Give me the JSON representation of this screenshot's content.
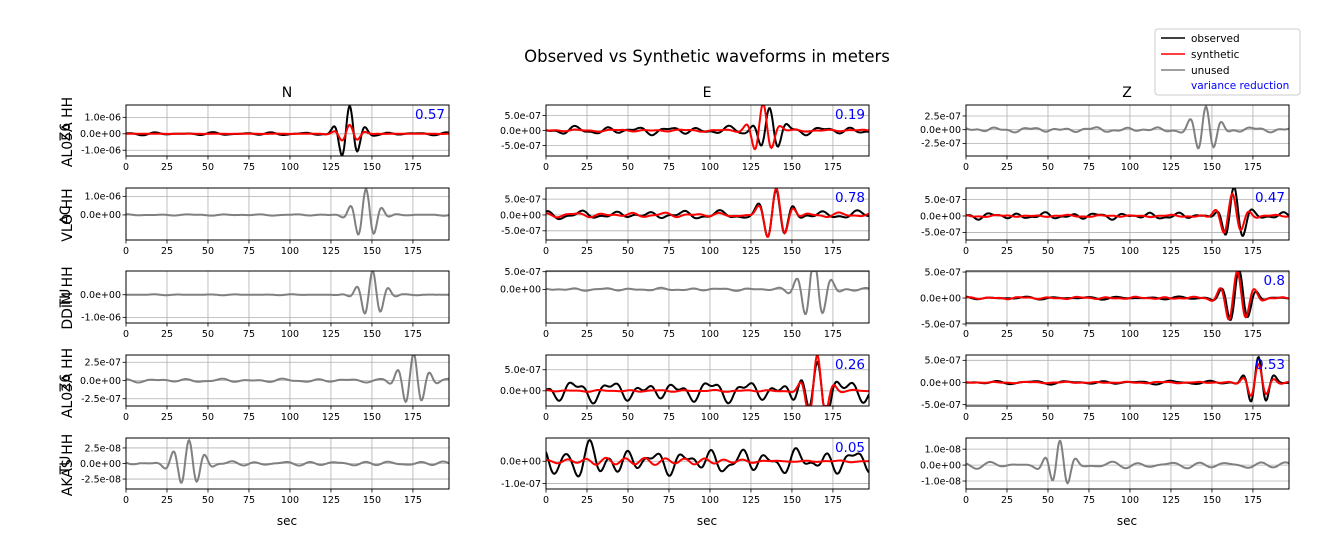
{
  "figure": {
    "title": "Observed vs Synthetic waveforms in meters",
    "columns": [
      "N",
      "E",
      "Z"
    ],
    "rows": [
      {
        "network": "Z6",
        "station": "AL05A HH"
      },
      {
        "network": "AC",
        "station": "VLO HH"
      },
      {
        "network": "TU",
        "station": "DDIM HH"
      },
      {
        "network": "Z6",
        "station": "AL03A HH"
      },
      {
        "network": "TU",
        "station": "AKAS HH"
      }
    ],
    "xlabel": "sec"
  },
  "legend": {
    "position": "top-right",
    "items": [
      {
        "label": "observed",
        "color": "#000000",
        "kind": "line"
      },
      {
        "label": "synthetic",
        "color": "#ff0000",
        "kind": "line"
      },
      {
        "label": "unused",
        "color": "#808080",
        "kind": "line"
      },
      {
        "label": "variance reduction",
        "color": "#0000ff",
        "kind": "text"
      }
    ]
  },
  "colors": {
    "observed": "#000000",
    "synthetic": "#ff0000",
    "unused": "#808080",
    "variance_reduction": "#0000ff",
    "grid": "#b0b0b0"
  },
  "chart_data": {
    "type": "line",
    "x_range": [
      0,
      197
    ],
    "x_ticks": [
      0,
      25,
      50,
      75,
      100,
      125,
      150,
      175
    ],
    "grid": true,
    "panels": [
      {
        "row": 0,
        "col": 0,
        "used": true,
        "vr": "0.57",
        "ylim": [
          -1.35e-06,
          1.75e-06
        ],
        "yticks": [
          1e-06,
          0,
          -1e-06
        ],
        "ytick_labels": [
          "1.0e-06",
          "0.0e+00",
          "-1.0e-06"
        ],
        "obs": {
          "amp": 1.7e-06,
          "center": 136,
          "width": 8,
          "period": 10,
          "noise": 0.06
        },
        "syn": {
          "amp": 5.5e-07,
          "center": 136,
          "width": 8,
          "period": 10,
          "noise": 0.02
        }
      },
      {
        "row": 0,
        "col": 1,
        "used": true,
        "vr": "0.19",
        "ylim": [
          -8.5e-07,
          8.5e-07
        ],
        "yticks": [
          5e-07,
          0,
          -5e-07
        ],
        "ytick_labels": [
          "5.0e-07",
          "0.0e+00",
          "-5.0e-07"
        ],
        "obs": {
          "amp": 8e-07,
          "center": 136,
          "width": 9,
          "period": 11,
          "noise": 0.2
        },
        "syn": {
          "amp": 9e-07,
          "center": 132,
          "width": 8,
          "period": 11,
          "noise": 0.05
        }
      },
      {
        "row": 0,
        "col": 2,
        "used": false,
        "vr": "",
        "ylim": [
          -4.8e-07,
          4.5e-07
        ],
        "yticks": [
          2.5e-07,
          0,
          -2.5e-07
        ],
        "ytick_labels": [
          "2.5e-07",
          "0.0e+00",
          "-2.5e-07"
        ],
        "obs": {
          "amp": 4.4e-07,
          "center": 146,
          "width": 9,
          "period": 10,
          "noise": 0.12
        }
      },
      {
        "row": 1,
        "col": 0,
        "used": false,
        "vr": "",
        "ylim": [
          -1.35e-06,
          1.45e-06
        ],
        "yticks": [
          1e-06,
          0
        ],
        "ytick_labels": [
          "1.0e-06",
          "0.0e+00"
        ],
        "obs": {
          "amp": 1.4e-06,
          "center": 146,
          "width": 9,
          "period": 10,
          "noise": 0.03
        }
      },
      {
        "row": 1,
        "col": 1,
        "used": true,
        "vr": "0.78",
        "ylim": [
          -7.9e-07,
          8.5e-07
        ],
        "yticks": [
          5e-07,
          0,
          -5e-07
        ],
        "ytick_labels": [
          "5.0e-07",
          "0.0e+00",
          "-5.0e-07"
        ],
        "obs": {
          "amp": 8.5e-07,
          "center": 140,
          "width": 10,
          "period": 11,
          "noise": 0.18
        },
        "syn": {
          "amp": 8.5e-07,
          "center": 140,
          "width": 10,
          "period": 11,
          "noise": 0.1
        }
      },
      {
        "row": 1,
        "col": 2,
        "used": true,
        "vr": "0.47",
        "ylim": [
          -7.3e-07,
          8.5e-07
        ],
        "yticks": [
          5e-07,
          0,
          -5e-07
        ],
        "ytick_labels": [
          "5.0e-07",
          "0.0e+00",
          "-5.0e-07"
        ],
        "obs": {
          "amp": 8.5e-07,
          "center": 163,
          "width": 9,
          "period": 11,
          "noise": 0.14
        },
        "syn": {
          "amp": 6.5e-07,
          "center": 162,
          "width": 9,
          "period": 11,
          "noise": 0.06
        }
      },
      {
        "row": 2,
        "col": 0,
        "used": false,
        "vr": "",
        "ylim": [
          -1.25e-06,
          1.05e-06
        ],
        "yticks": [
          0,
          -1e-06
        ],
        "ytick_labels": [
          "0.0e+00",
          "-1.0e-06"
        ],
        "obs": {
          "amp": 1.05e-06,
          "center": 150,
          "width": 9,
          "period": 10,
          "noise": 0.02
        }
      },
      {
        "row": 2,
        "col": 1,
        "used": false,
        "vr": "",
        "ylim": [
          -9.5e-07,
          5.2e-07
        ],
        "yticks": [
          5e-07,
          0
        ],
        "ytick_labels": [
          "5.0e-07",
          "0.0e+00"
        ],
        "obs": {
          "amp": 9e-07,
          "center": 163,
          "width": 10,
          "period": 11,
          "noise": 0.05
        }
      },
      {
        "row": 2,
        "col": 2,
        "used": true,
        "vr": "0.8",
        "ylim": [
          -4.8e-07,
          5.2e-07
        ],
        "yticks": [
          5e-07,
          0,
          -5e-07
        ],
        "ytick_labels": [
          "5.0e-07",
          "0.0e+00",
          "-5.0e-07"
        ],
        "obs": {
          "amp": 5.2e-07,
          "center": 166,
          "width": 10,
          "period": 11,
          "noise": 0.06
        },
        "syn": {
          "amp": 5.2e-07,
          "center": 165,
          "width": 10,
          "period": 11,
          "noise": 0.05
        }
      },
      {
        "row": 3,
        "col": 0,
        "used": false,
        "vr": "",
        "ylim": [
          -3.5e-07,
          3.5e-07
        ],
        "yticks": [
          2.5e-07,
          0,
          -2.5e-07
        ],
        "ytick_labels": [
          "2.5e-07",
          "0.0e+00",
          "-2.5e-07"
        ],
        "obs": {
          "amp": 3.5e-07,
          "center": 175,
          "width": 10,
          "period": 10,
          "noise": 0.08
        }
      },
      {
        "row": 3,
        "col": 1,
        "used": true,
        "vr": "0.26",
        "ylim": [
          -3.6e-07,
          8.5e-07
        ],
        "yticks": [
          5e-07,
          0
        ],
        "ytick_labels": [
          "5.0e-07",
          "0.0e+00"
        ],
        "obs": {
          "amp": 6e-07,
          "center": 165,
          "width": 11,
          "period": 11,
          "noise": 0.5
        },
        "syn": {
          "amp": 8.5e-07,
          "center": 165,
          "width": 8,
          "period": 11,
          "noise": 0.03
        }
      },
      {
        "row": 3,
        "col": 2,
        "used": true,
        "vr": "0.53",
        "ylim": [
          -5.3e-07,
          6.2e-07
        ],
        "yticks": [
          5e-07,
          0,
          -5e-07
        ],
        "ytick_labels": [
          "5.0e-07",
          "0.0e+00",
          "-5.0e-07"
        ],
        "obs": {
          "amp": 6e-07,
          "center": 178,
          "width": 8,
          "period": 10,
          "noise": 0.08
        },
        "syn": {
          "amp": 4e-07,
          "center": 178,
          "width": 8,
          "period": 10,
          "noise": 0.05
        }
      },
      {
        "row": 4,
        "col": 0,
        "used": false,
        "vr": "",
        "ylim": [
          -4.1e-08,
          4.1e-08
        ],
        "yticks": [
          2.5e-08,
          0,
          -2.5e-08
        ],
        "ytick_labels": [
          "2.5e-08",
          "0.0e+00",
          "-2.5e-08"
        ],
        "obs": {
          "amp": 4e-08,
          "center": 38,
          "width": 10,
          "period": 10,
          "noise": 0.1
        }
      },
      {
        "row": 4,
        "col": 1,
        "used": true,
        "vr": "0.05",
        "ylim": [
          -1.25e-07,
          1.05e-07
        ],
        "yticks": [
          0,
          -1e-07
        ],
        "ytick_labels": [
          "0.0e+00",
          "-1.0e-07"
        ],
        "obs": {
          "amp": 1.1e-07,
          "center": 25,
          "width": 12,
          "period": 14,
          "noise": 0.6
        },
        "syn": {
          "amp": 1.5e-08,
          "center": 60,
          "width": 60,
          "period": 12,
          "noise": 0.3
        }
      },
      {
        "row": 4,
        "col": 2,
        "used": false,
        "vr": "",
        "ylim": [
          -1.5e-08,
          1.7e-08
        ],
        "yticks": [
          1e-08,
          0,
          -1e-08
        ],
        "ytick_labels": [
          "1.0e-08",
          "0.0e+00",
          "-1.0e-08"
        ],
        "obs": {
          "amp": 1.6e-08,
          "center": 57,
          "width": 8,
          "period": 10,
          "noise": 0.15
        }
      }
    ]
  }
}
